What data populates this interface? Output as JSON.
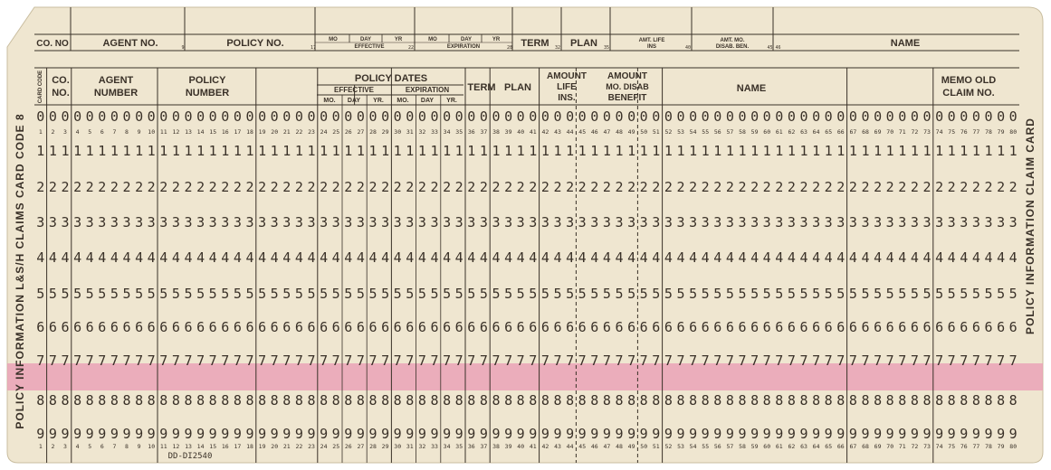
{
  "top_strip": {
    "co_no": "CO. NO",
    "agent_no": "AGENT NO.",
    "policy_no": "POLICY NO.",
    "eff_mo": "MO",
    "eff_day": "DAY",
    "eff_yr": "YR",
    "effective": "EFFECTIVE",
    "exp_mo": "MO",
    "exp_day": "DAY",
    "exp_yr": "YR",
    "expiration": "EXPIRATION",
    "term": "TERM",
    "plan": "PLAN",
    "amt_life_1": "AMT. LIFE",
    "amt_life_2": "INS",
    "amt_mo_1": "AMT. MO.",
    "amt_mo_2": "DISAB. BEN.",
    "name": "NAME",
    "n9": "9",
    "n17": "17",
    "n22": "22",
    "n28": "28",
    "n32": "32",
    "n35": "35",
    "n40": "40",
    "n4546": "45 46"
  },
  "headers": {
    "card_code": "CARD CODE",
    "co_no_1": "CO.",
    "co_no_2": "NO.",
    "agent_1": "AGENT",
    "agent_2": "NUMBER",
    "policy_1": "POLICY",
    "policy_2": "NUMBER",
    "policy_dates": "POLICY DATES",
    "effective": "EFFECTIVE",
    "expiration": "EXPIRATION",
    "mo": "MO.",
    "day": "DAY",
    "yr": "YR.",
    "term": "TERM",
    "plan": "PLAN",
    "amt_life_1": "AMOUNT",
    "amt_life_2": "LIFE",
    "amt_life_3": "INS.",
    "amt_mo_1": "AMOUNT",
    "amt_mo_2": "MO. DISAB",
    "amt_mo_3": "BENEFIT",
    "name": "NAME",
    "memo_1": "MEMO OLD",
    "memo_2": "CLAIM NO."
  },
  "side_left": "POLICY INFORMATION L&S/H CLAIMS CARD CODE 8",
  "side_right": "POLICY INFORMATION CLAIM CARD",
  "form_number": "DD-DI2540",
  "digit_rows": [
    "0",
    "1",
    "2",
    "3",
    "4",
    "5",
    "6",
    "7",
    "8",
    "9"
  ],
  "column_count": 80,
  "colors": {
    "paper": "#efe6d0",
    "ink": "#3a3128",
    "stripe": "#e99ab4"
  }
}
